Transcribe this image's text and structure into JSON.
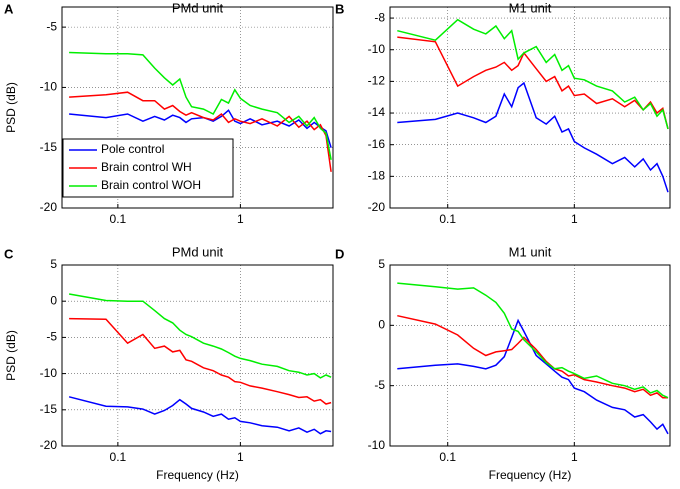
{
  "chart_data": [
    {
      "type": "line",
      "panel_label": "A",
      "title": "PMd unit",
      "ylabel": "PSD (dB)",
      "xscale": "log",
      "grid": true,
      "legend": "lower left",
      "x": [
        0.04,
        0.08,
        0.12,
        0.16,
        0.2,
        0.24,
        0.28,
        0.32,
        0.36,
        0.4,
        0.5,
        0.6,
        0.7,
        0.8,
        0.9,
        1,
        1.2,
        1.5,
        2,
        2.5,
        3,
        3.5,
        4,
        4.5,
        5,
        5.5
      ],
      "xlim": [
        0.035,
        5.7
      ],
      "xticks": [
        0.1,
        1
      ],
      "ylim": [
        -20,
        -3.33
      ],
      "yticks": [
        -20,
        -15,
        -10,
        -5
      ],
      "series": [
        {
          "name": "Pole control",
          "color": "#0000ff",
          "values": [
            -12.2,
            -12.5,
            -12.2,
            -12.8,
            -12.4,
            -12.7,
            -12.3,
            -12.5,
            -12.9,
            -12.6,
            -12.5,
            -12.8,
            -12.4,
            -11.9,
            -12.8,
            -13,
            -12.6,
            -13.1,
            -12.8,
            -13.2,
            -12.7,
            -13.4,
            -12.9,
            -13.3,
            -13.6,
            -15
          ]
        },
        {
          "name": "Brain control WH",
          "color": "#ff0000",
          "values": [
            -10.8,
            -10.6,
            -10.4,
            -11.1,
            -11.1,
            -11.8,
            -11.5,
            -12,
            -12.3,
            -12.1,
            -12.5,
            -12.7,
            -12.2,
            -12.9,
            -12.6,
            -12.8,
            -13,
            -12.6,
            -13.2,
            -12.4,
            -13.3,
            -12.8,
            -13.5,
            -13.1,
            -14,
            -17
          ]
        },
        {
          "name": "Brain control WOH",
          "color": "#00ee00",
          "values": [
            -7.1,
            -7.2,
            -7.2,
            -7.3,
            -8.4,
            -9.2,
            -9.8,
            -9.3,
            -10.8,
            -11.6,
            -11.8,
            -12.2,
            -11,
            -11.3,
            -10.2,
            -10.9,
            -11.5,
            -11.8,
            -12.1,
            -12.9,
            -12.4,
            -13.2,
            -12.5,
            -13.4,
            -13.8,
            -16
          ]
        }
      ]
    },
    {
      "type": "line",
      "panel_label": "B",
      "title": "M1 unit",
      "xscale": "log",
      "grid": true,
      "x": [
        0.04,
        0.08,
        0.12,
        0.16,
        0.2,
        0.24,
        0.28,
        0.32,
        0.36,
        0.4,
        0.5,
        0.6,
        0.7,
        0.8,
        0.9,
        1,
        1.2,
        1.5,
        2,
        2.5,
        3,
        3.5,
        4,
        4.5,
        5,
        5.5
      ],
      "xlim": [
        0.035,
        5.7
      ],
      "xticks": [
        0.1,
        1
      ],
      "ylim": [
        -20,
        -7.3
      ],
      "yticks": [
        -20,
        -18,
        -16,
        -14,
        -12,
        -10,
        -8
      ],
      "series": [
        {
          "color": "#0000ff",
          "values": [
            -14.6,
            -14.4,
            -14,
            -14.3,
            -14.6,
            -14.2,
            -12.8,
            -13.6,
            -12.4,
            -12.1,
            -14.3,
            -14.7,
            -14.2,
            -15.2,
            -15,
            -15.8,
            -16.2,
            -16.6,
            -17.2,
            -16.8,
            -17.4,
            -16.9,
            -17.6,
            -17.2,
            -18,
            -19
          ]
        },
        {
          "color": "#ff0000",
          "values": [
            -9.2,
            -9.5,
            -12.3,
            -11.7,
            -11.3,
            -11.1,
            -10.8,
            -11.3,
            -11,
            -10.2,
            -11.2,
            -12,
            -11.7,
            -12.6,
            -12.3,
            -12.9,
            -12.8,
            -13.4,
            -13.1,
            -13.6,
            -13.2,
            -13.8,
            -13.3,
            -14,
            -13.7,
            -15
          ]
        },
        {
          "color": "#00ee00",
          "values": [
            -8.8,
            -9.4,
            -8.1,
            -8.7,
            -9,
            -8.5,
            -9.3,
            -8.8,
            -10.6,
            -10.2,
            -9.8,
            -10.8,
            -10.3,
            -11.3,
            -11,
            -11.8,
            -11.9,
            -12.3,
            -12.6,
            -13.3,
            -13,
            -13.8,
            -13.4,
            -14.2,
            -13.8,
            -15
          ]
        }
      ]
    },
    {
      "type": "line",
      "panel_label": "C",
      "title": "PMd unit",
      "ylabel": "PSD (dB)",
      "xlabel": "Frequency (Hz)",
      "xscale": "log",
      "grid": true,
      "x": [
        0.04,
        0.08,
        0.12,
        0.16,
        0.2,
        0.24,
        0.28,
        0.32,
        0.36,
        0.4,
        0.5,
        0.6,
        0.7,
        0.8,
        0.9,
        1,
        1.2,
        1.5,
        2,
        2.5,
        3,
        3.5,
        4,
        4.5,
        5,
        5.5
      ],
      "xlim": [
        0.035,
        5.7
      ],
      "xticks": [
        0.1,
        1
      ],
      "ylim": [
        -20,
        5
      ],
      "yticks": [
        -20,
        -15,
        -10,
        -5,
        0,
        5
      ],
      "series": [
        {
          "color": "#0000ff",
          "values": [
            -13.2,
            -14.5,
            -14.6,
            -14.9,
            -15.6,
            -15.1,
            -14.4,
            -13.6,
            -14.2,
            -14.8,
            -15.3,
            -15.9,
            -15.6,
            -16.3,
            -16.1,
            -16.6,
            -16.8,
            -17.2,
            -17.4,
            -17.9,
            -17.5,
            -18.1,
            -17.7,
            -18.3,
            -17.9,
            -18
          ]
        },
        {
          "color": "#ff0000",
          "values": [
            -2.4,
            -2.5,
            -5.8,
            -4.6,
            -6.5,
            -6.2,
            -7,
            -6.8,
            -8.1,
            -8.3,
            -9.2,
            -9.6,
            -10.2,
            -10.5,
            -11.1,
            -11.2,
            -11.7,
            -12,
            -12.5,
            -12.9,
            -13.3,
            -13.2,
            -13.8,
            -13.6,
            -14.2,
            -14
          ]
        },
        {
          "color": "#00ee00",
          "values": [
            1,
            0.1,
            0,
            0,
            -1.3,
            -2.4,
            -3,
            -4,
            -4.6,
            -4.9,
            -5.8,
            -6.2,
            -6.6,
            -7.1,
            -7.6,
            -7.9,
            -8.2,
            -8.7,
            -9,
            -9.6,
            -9.8,
            -10.2,
            -10,
            -10.6,
            -10.2,
            -10.5
          ]
        }
      ]
    },
    {
      "type": "line",
      "panel_label": "D",
      "title": "M1 unit",
      "xlabel": "Frequency (Hz)",
      "xscale": "log",
      "grid": true,
      "x": [
        0.04,
        0.08,
        0.12,
        0.16,
        0.2,
        0.24,
        0.28,
        0.32,
        0.36,
        0.4,
        0.5,
        0.6,
        0.7,
        0.8,
        0.9,
        1,
        1.2,
        1.5,
        2,
        2.5,
        3,
        3.5,
        4,
        4.5,
        5,
        5.5
      ],
      "xlim": [
        0.035,
        5.7
      ],
      "xticks": [
        0.1,
        1
      ],
      "ylim": [
        -10,
        5
      ],
      "yticks": [
        -10,
        -5,
        0,
        5
      ],
      "series": [
        {
          "color": "#0000ff",
          "values": [
            -3.6,
            -3.3,
            -3.2,
            -3.4,
            -3.6,
            -3.3,
            -2.6,
            -1,
            0.4,
            -0.5,
            -2.5,
            -3.2,
            -3.8,
            -4.3,
            -4.5,
            -5.2,
            -5.5,
            -6.2,
            -6.8,
            -7,
            -7.6,
            -7.4,
            -8,
            -8.6,
            -8.2,
            -9
          ]
        },
        {
          "color": "#ff0000",
          "values": [
            0.8,
            0.1,
            -0.8,
            -1.9,
            -2.5,
            -2.2,
            -2.1,
            -2,
            -1.5,
            -1,
            -2,
            -3,
            -3.6,
            -3.8,
            -4.2,
            -4.1,
            -4.5,
            -4.7,
            -5,
            -5.2,
            -5.5,
            -5.3,
            -5.8,
            -5.6,
            -6,
            -6
          ]
        },
        {
          "color": "#00ee00",
          "values": [
            3.5,
            3.2,
            3,
            3.1,
            2.5,
            1.9,
            1,
            -0.3,
            -0.5,
            -1.2,
            -2.2,
            -3.1,
            -3.6,
            -3.5,
            -3.8,
            -4,
            -4.4,
            -4.2,
            -4.8,
            -5,
            -5.3,
            -5.1,
            -5.6,
            -5.4,
            -5.8,
            -6
          ]
        }
      ]
    }
  ]
}
